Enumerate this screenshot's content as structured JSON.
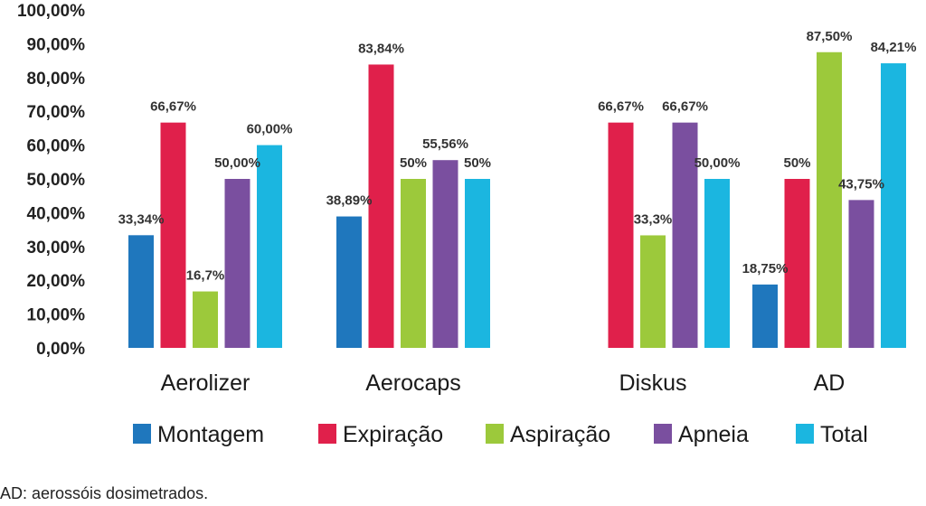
{
  "chart_data": {
    "type": "bar",
    "categories": [
      "Aerolizer",
      "Aerocaps",
      "Diskus",
      "AD"
    ],
    "series": [
      {
        "name": "Montagem",
        "color": "#1f77bd",
        "values": [
          33.34,
          38.89,
          null,
          18.75
        ],
        "labels": [
          "33,34%",
          "38,89%",
          "",
          "18,75%"
        ]
      },
      {
        "name": "Expiração",
        "color": "#e0204b",
        "values": [
          66.67,
          83.84,
          66.67,
          50
        ],
        "labels": [
          "66,67%",
          "83,84%",
          "66,67%",
          "50%"
        ]
      },
      {
        "name": "Aspiração",
        "color": "#9cc93b",
        "values": [
          16.7,
          50,
          33.3,
          87.5
        ],
        "labels": [
          "16,7%",
          "50%",
          "33,3%",
          "87,50%"
        ]
      },
      {
        "name": "Apneia",
        "color": "#7a4f9f",
        "values": [
          50,
          55.56,
          66.67,
          43.75
        ],
        "labels": [
          "50,00%",
          "55,56%",
          "66,67%",
          "43,75%"
        ]
      },
      {
        "name": "Total",
        "color": "#1bb6e0",
        "values": [
          60,
          50,
          50,
          84.21
        ],
        "labels": [
          "60,00%",
          "50%",
          "50,00%",
          "84,21%"
        ]
      }
    ],
    "ylim": [
      0,
      100
    ],
    "yticks": [
      0,
      10,
      20,
      30,
      40,
      50,
      60,
      70,
      80,
      90,
      100
    ],
    "ytick_labels": [
      "0,00%",
      "10,00%",
      "20,00%",
      "30,00%",
      "40,00%",
      "50,00%",
      "60,00%",
      "70,00%",
      "80,00%",
      "90,00%",
      "100,00%"
    ],
    "legend_position": "bottom",
    "grid": false,
    "title": "",
    "xlabel": "",
    "ylabel": ""
  },
  "caption": "AD: aerossóis dosimetrados."
}
